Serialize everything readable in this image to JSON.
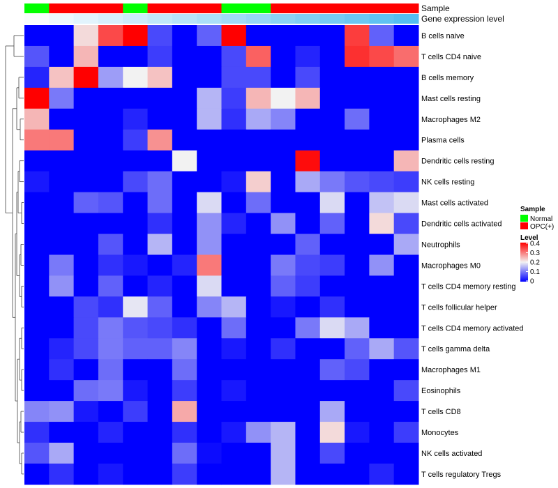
{
  "chart_data": {
    "type": "heatmap",
    "annotations": {
      "sample_title": "Sample",
      "level_title": "Gene expression level",
      "sample": [
        "Normal",
        "OPC(+)",
        "OPC(+)",
        "OPC(+)",
        "Normal",
        "OPC(+)",
        "OPC(+)",
        "OPC(+)",
        "Normal",
        "Normal",
        "OPC(+)",
        "OPC(+)",
        "OPC(+)",
        "OPC(+)",
        "OPC(+)",
        "OPC(+)"
      ],
      "expression_level": [
        0.02,
        0.05,
        0.08,
        0.11,
        0.14,
        0.17,
        0.2,
        0.23,
        0.26,
        0.29,
        0.32,
        0.35,
        0.38,
        0.41,
        0.44,
        0.47
      ]
    },
    "rows": [
      "B cells naive",
      "T cells CD4 naive",
      "B cells memory",
      "Mast cells resting",
      "Macrophages M2",
      "Plasma cells",
      "Dendritic cells resting",
      "NK cells resting",
      "Mast cells activated",
      "Dendritic cells activated",
      "Neutrophils",
      "Macrophages M0",
      "T cells CD4 memory resting",
      "T cells follicular helper",
      "T cells CD4 memory activated",
      "T cells gamma delta",
      "Macrophages M1",
      "Eosinophils",
      "T cells CD8",
      "Monocytes",
      "NK cells activated",
      "T cells regulatory  Tregs"
    ],
    "values": [
      [
        0,
        0,
        0.22,
        0.34,
        0.4,
        0.06,
        0,
        0.08,
        0.4,
        0,
        0,
        0,
        0,
        0.35,
        0.08,
        0
      ],
      [
        0.07,
        0,
        0.25,
        0,
        0,
        0.05,
        0,
        0,
        0.06,
        0.32,
        0,
        0.03,
        0,
        0.36,
        0.34,
        0.31
      ],
      [
        0.03,
        0.24,
        0.4,
        0.13,
        0.2,
        0.24,
        0,
        0,
        0.06,
        0.06,
        0,
        0.06,
        0,
        0,
        0,
        0
      ],
      [
        0.4,
        0.1,
        0,
        0,
        0,
        0,
        0,
        0.15,
        0.05,
        0.25,
        0.2,
        0.25,
        0,
        0,
        0,
        0
      ],
      [
        0.25,
        0,
        0,
        0,
        0.03,
        0,
        0,
        0.15,
        0.04,
        0.14,
        0.11,
        0,
        0,
        0.09,
        0,
        0
      ],
      [
        0.3,
        0.3,
        0,
        0,
        0.05,
        0.28,
        0,
        0,
        0,
        0,
        0,
        0,
        0,
        0,
        0,
        0
      ],
      [
        0,
        0,
        0,
        0,
        0,
        0,
        0.2,
        0,
        0,
        0,
        0,
        0.39,
        0,
        0,
        0,
        0.25
      ],
      [
        0.02,
        0,
        0,
        0,
        0.06,
        0.09,
        0,
        0,
        0.02,
        0.23,
        0,
        0.14,
        0.1,
        0.07,
        0.06,
        0.05
      ],
      [
        0,
        0,
        0.08,
        0.07,
        0,
        0.09,
        0,
        0.18,
        0,
        0.09,
        0,
        0,
        0.18,
        0,
        0.16,
        0.18
      ],
      [
        0,
        0,
        0,
        0,
        0,
        0.04,
        0,
        0.12,
        0.03,
        0,
        0.12,
        0,
        0.08,
        0,
        0.22,
        0.06
      ],
      [
        0,
        0,
        0,
        0.07,
        0,
        0.15,
        0,
        0.12,
        0,
        0,
        0,
        0.08,
        0,
        0,
        0,
        0.14
      ],
      [
        0,
        0.1,
        0,
        0.04,
        0.02,
        0,
        0.03,
        0.3,
        0,
        0,
        0.1,
        0.06,
        0.05,
        0,
        0.12,
        0
      ],
      [
        0,
        0.12,
        0,
        0.08,
        0,
        0.03,
        0,
        0.18,
        0,
        0,
        0.08,
        0.05,
        0,
        0,
        0,
        0
      ],
      [
        0,
        0,
        0.06,
        0.04,
        0.19,
        0.08,
        0,
        0.11,
        0.15,
        0,
        0.02,
        0,
        0.04,
        0,
        0,
        0
      ],
      [
        0,
        0,
        0.06,
        0.1,
        0.07,
        0.06,
        0.04,
        0,
        0.09,
        0,
        0,
        0.1,
        0.18,
        0.14,
        0,
        0
      ],
      [
        0,
        0.03,
        0.06,
        0.1,
        0.08,
        0.08,
        0.11,
        0,
        0.02,
        0,
        0.04,
        0,
        0,
        0.08,
        0.14,
        0.07
      ],
      [
        0,
        0.04,
        0,
        0.09,
        0,
        0,
        0.09,
        0,
        0,
        0,
        0,
        0,
        0.08,
        0.06,
        0,
        0
      ],
      [
        0,
        0,
        0.09,
        0.1,
        0.02,
        0,
        0.05,
        0,
        0.02,
        0,
        0,
        0,
        0,
        0,
        0,
        0.06
      ],
      [
        0.11,
        0.12,
        0.02,
        0,
        0.05,
        0,
        0.26,
        0,
        0,
        0,
        0,
        0,
        0.14,
        0,
        0,
        0
      ],
      [
        0.04,
        0,
        0,
        0.03,
        0,
        0,
        0.04,
        0,
        0.02,
        0.12,
        0.15,
        0,
        0.22,
        0.02,
        0,
        0.05
      ],
      [
        0.07,
        0.14,
        0,
        0,
        0,
        0,
        0.09,
        0.01,
        0,
        0,
        0.15,
        0,
        0.06,
        0,
        0,
        0
      ],
      [
        0,
        0.04,
        0,
        0.02,
        0,
        0,
        0.05,
        0,
        0,
        0,
        0.15,
        0,
        0,
        0,
        0.03,
        0
      ]
    ],
    "color_scale": {
      "min": 0,
      "mid": 0.2,
      "max": 0.4,
      "low": "#0000ff",
      "midColor": "#f2f2f2",
      "high": "#ff0000"
    },
    "legend": {
      "sample_title": "Sample",
      "sample_entries": [
        {
          "label": "Normal",
          "color": "#00ff00"
        },
        {
          "label": "OPC(+)",
          "color": "#ff0000"
        }
      ],
      "level_title": "Level",
      "level_ticks": [
        "0.4",
        "0.3",
        "0.2",
        "0.1",
        "0"
      ],
      "placement": "right"
    }
  }
}
